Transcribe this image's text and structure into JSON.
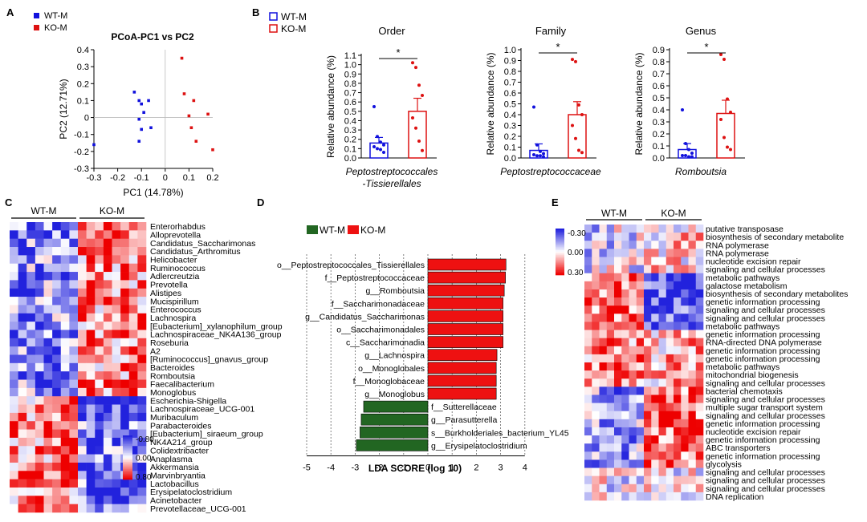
{
  "panel_labels": {
    "A": "A",
    "B": "B",
    "C": "C",
    "D": "D",
    "E": "E"
  },
  "colors": {
    "wt": "#1111dd",
    "ko": "#dd1111",
    "lda_wt": "#226622",
    "lda_ko": "#ee1111",
    "heat_low": "#2222dd",
    "heat_mid": "#ffffff",
    "heat_high": "#ee0000"
  },
  "chart_data": [
    {
      "type": "scatter",
      "title": "PCoA-PC1 vs PC2",
      "xlabel": "PC1 (14.78%)",
      "ylabel": "PC2 (12.71%)",
      "xlim": [
        -0.3,
        0.2
      ],
      "ylim": [
        -0.3,
        0.4
      ],
      "x_ticks": [
        "-0.3",
        "-0.2",
        "-0.1",
        "0",
        "0.1",
        "0.2"
      ],
      "y_ticks": [
        "-0.3",
        "-0.2",
        "-0.1",
        "0",
        "0.1",
        "0.2",
        "0.3",
        "0.4"
      ],
      "legend": [
        "WT-M",
        "KO-M"
      ],
      "series": [
        {
          "name": "WT-M",
          "points": [
            [
              -0.3,
              -0.16
            ],
            [
              -0.13,
              0.15
            ],
            [
              -0.11,
              0.1
            ],
            [
              -0.1,
              0.08
            ],
            [
              -0.09,
              0.03
            ],
            [
              -0.11,
              -0.01
            ],
            [
              -0.1,
              -0.07
            ],
            [
              -0.07,
              0.1
            ],
            [
              -0.06,
              -0.06
            ],
            [
              -0.11,
              -0.14
            ]
          ]
        },
        {
          "name": "KO-M",
          "points": [
            [
              0.07,
              0.35
            ],
            [
              0.08,
              0.14
            ],
            [
              0.12,
              0.1
            ],
            [
              0.1,
              0.01
            ],
            [
              0.18,
              0.02
            ],
            [
              0.11,
              -0.06
            ],
            [
              0.13,
              -0.14
            ],
            [
              0.2,
              -0.19
            ]
          ]
        }
      ]
    },
    {
      "type": "bar",
      "title": "Order",
      "xlabel_lines": [
        "Peptostreptococcales",
        "-Tissierellales"
      ],
      "ylabel": "Relative abundance (%)",
      "ylim": [
        0,
        1.1
      ],
      "y_ticks": [
        "0.0",
        "0.1",
        "0.2",
        "0.3",
        "0.4",
        "0.5",
        "0.6",
        "0.7",
        "0.8",
        "0.9",
        "1.0",
        "1.1"
      ],
      "significance": "*",
      "legend": [
        "WT-M",
        "KO-M"
      ],
      "series": [
        {
          "name": "WT-M",
          "mean": 0.16,
          "sem": 0.06,
          "points": [
            0.55,
            0.23,
            0.17,
            0.14,
            0.12,
            0.1,
            0.09,
            0.06
          ]
        },
        {
          "name": "KO-M",
          "mean": 0.5,
          "sem": 0.14,
          "points": [
            1.02,
            0.97,
            0.78,
            0.67,
            0.43,
            0.32,
            0.18,
            0.08
          ]
        }
      ]
    },
    {
      "type": "bar",
      "title": "Family",
      "xlabel_lines": [
        "Peptostreptococcaceae"
      ],
      "ylabel": "Relative abundance (%)",
      "ylim": [
        0,
        1.0
      ],
      "y_ticks": [
        "0.0",
        "0.1",
        "0.2",
        "0.3",
        "0.4",
        "0.5",
        "0.6",
        "0.7",
        "0.8",
        "0.9",
        "1.0"
      ],
      "significance": "*",
      "series": [
        {
          "name": "WT-M",
          "mean": 0.07,
          "sem": 0.06,
          "points": [
            0.47,
            0.12,
            0.06,
            0.04,
            0.03,
            0.02,
            0.02,
            0.01
          ]
        },
        {
          "name": "KO-M",
          "mean": 0.4,
          "sem": 0.12,
          "points": [
            0.91,
            0.89,
            0.49,
            0.4,
            0.3,
            0.18,
            0.07,
            0.05
          ]
        }
      ]
    },
    {
      "type": "bar",
      "title": "Genus",
      "xlabel_lines": [
        "Romboutsia"
      ],
      "ylabel": "Relative abundance (%)",
      "ylim": [
        0,
        0.9
      ],
      "y_ticks": [
        "0.0",
        "0.1",
        "0.2",
        "0.3",
        "0.4",
        "0.5",
        "0.6",
        "0.7",
        "0.8",
        "0.9"
      ],
      "significance": "*",
      "series": [
        {
          "name": "WT-M",
          "mean": 0.07,
          "sem": 0.05,
          "points": [
            0.4,
            0.12,
            0.07,
            0.04,
            0.02,
            0.02,
            0.01,
            0.01
          ]
        },
        {
          "name": "KO-M",
          "mean": 0.37,
          "sem": 0.11,
          "points": [
            0.86,
            0.82,
            0.49,
            0.38,
            0.32,
            0.17,
            0.09,
            0.07
          ]
        }
      ]
    },
    {
      "type": "bar",
      "orientation": "horizontal",
      "xlabel": "LDA SCORE (log 10)",
      "xlim": [
        -5,
        4
      ],
      "x_ticks": [
        "-5",
        "-4",
        "-3",
        "-2",
        "-1",
        "0",
        "1",
        "2",
        "3",
        "4"
      ],
      "legend": [
        "WT-M",
        "KO-M"
      ],
      "bars": [
        {
          "label": "o__Peptostreptococcales_Tissierellales",
          "value": 3.22,
          "group": "KO-M"
        },
        {
          "label": "f__Peptostreptococcaceae",
          "value": 3.2,
          "group": "KO-M"
        },
        {
          "label": "g__Romboutsia",
          "value": 3.15,
          "group": "KO-M"
        },
        {
          "label": "f__Saccharimonadaceae",
          "value": 3.1,
          "group": "KO-M"
        },
        {
          "label": "g__Candidatus_Saccharimonas",
          "value": 3.1,
          "group": "KO-M"
        },
        {
          "label": "o__Saccharimonadales",
          "value": 3.1,
          "group": "KO-M"
        },
        {
          "label": "c__Saccharimonadia",
          "value": 3.1,
          "group": "KO-M"
        },
        {
          "label": "g__Lachnospira",
          "value": 2.85,
          "group": "KO-M"
        },
        {
          "label": "o__Monoglobales",
          "value": 2.82,
          "group": "KO-M"
        },
        {
          "label": "f__Monoglobaceae",
          "value": 2.82,
          "group": "KO-M"
        },
        {
          "label": "g__Monoglobus",
          "value": 2.82,
          "group": "KO-M"
        },
        {
          "label": "f__Sutterellaceae",
          "value": -2.65,
          "group": "WT-M"
        },
        {
          "label": "g__Parasutterella",
          "value": -2.75,
          "group": "WT-M"
        },
        {
          "label": "s__Burkholderiales_bacterium_YL45",
          "value": -2.8,
          "group": "WT-M"
        },
        {
          "label": "g__Erysipelatoclostridium",
          "value": -2.95,
          "group": "WT-M"
        }
      ]
    },
    {
      "type": "heatmap",
      "column_groups": [
        "WT-M",
        "KO-M"
      ],
      "columns_per_group": 8,
      "scale_labels": [
        "0.80",
        "0.00",
        "-0.80"
      ],
      "rows": [
        "Enterorhabdus",
        "Alloprevotella",
        "Candidatus_Saccharimonas",
        "Candidatus_Arthromitus",
        "Helicobacter",
        "Ruminococcus",
        "Adlercreutzia",
        "Prevotella",
        "Alistipes",
        "Mucispirillum",
        "Enterococcus",
        "Lachnospira",
        "[Eubacterium]_xylanophilum_group",
        "Lachnospiraceae_NK4A136_group",
        "Roseburia",
        "A2",
        "[Ruminococcus]_gnavus_group",
        "Bacteroides",
        "Romboutsia",
        "Faecalibacterium",
        "Monoglobus",
        "Escherichia-Shigella",
        "Lachnospiraceae_UCG-001",
        "Muribaculum",
        "Parabacteroides",
        "[Eubacterium]_siraeum_group",
        "NK4A214_group",
        "Colidextribacter",
        "Anaplasma",
        "Akkermansia",
        "Marvinbryantia",
        "Lactobacillus",
        "Erysipelatoclostridium",
        "Acinetobacter",
        "Prevotellaceae_UCG-001"
      ]
    },
    {
      "type": "heatmap",
      "column_groups": [
        "WT-M",
        "KO-M"
      ],
      "columns_per_group": 8,
      "scale_labels": [
        "-0.30",
        "0.00",
        "0.30"
      ],
      "rows": [
        "putative transposase",
        "biosynthesis of secondary metabolite",
        "RNA polymerase",
        "RNA polymerase",
        "nucleotide excision repair",
        "signaling and cellular processes",
        "metabolic pathways",
        "galactose metabolism",
        "biosynthesis of secondary metabolites",
        "genetic information processing",
        "signaling and cellular processes",
        "signaling and cellular processes",
        "metabolic pathways",
        "genetic information processing",
        "RNA-directed DNA polymerase",
        "genetic information processing",
        "genetic information processing",
        "metabolic pathways",
        "mitochondrial biogenesis",
        "signaling and cellular processes",
        "bacterial chemotaxis",
        "signaling and cellular processes",
        "multiple sugar transport system",
        "signaling and cellular processes",
        "genetic information processing",
        "nucleotide excision repair",
        "genetic information processing",
        "ABC transporters",
        "genetic information processing",
        "glycolysis",
        "signaling and cellular processes",
        "signaling and cellular processes",
        "signaling and cellular processes",
        "DNA replication"
      ]
    }
  ]
}
